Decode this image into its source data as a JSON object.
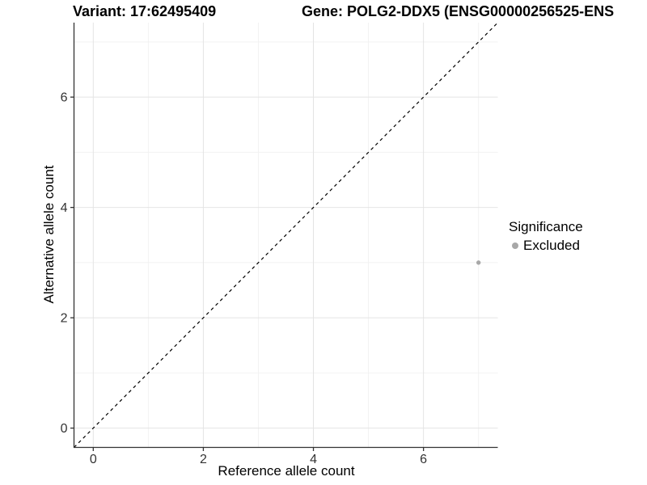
{
  "header": {
    "variant_title": "Variant: 17:62495409",
    "gene_title": "Gene: POLG2-DDX5 (ENSG00000256525-ENS"
  },
  "chart_data": {
    "type": "scatter",
    "xlabel": "Reference allele count",
    "ylabel": "Alternative allele count",
    "xlim": [
      -0.35,
      7.35
    ],
    "ylim": [
      -0.35,
      7.35
    ],
    "x_ticks": [
      0,
      2,
      4,
      6
    ],
    "y_ticks": [
      0,
      2,
      4,
      6
    ],
    "grid": "major and minor gridlines, light gray on white panel",
    "reference_line": {
      "type": "identity y=x",
      "style": "dashed",
      "color": "#000000"
    },
    "series": [
      {
        "name": "Excluded",
        "color": "#a8a8a8",
        "points": [
          {
            "x": 7,
            "y": 3
          }
        ]
      }
    ],
    "legend": {
      "title": "Significance",
      "position": "right",
      "entries": [
        {
          "label": "Excluded",
          "color": "#a8a8a8"
        }
      ]
    },
    "colors": {
      "grid_major": "#e4e4e4",
      "grid_minor": "#f2f2f2",
      "axis_line": "#333333",
      "tick_text": "#333333"
    }
  }
}
